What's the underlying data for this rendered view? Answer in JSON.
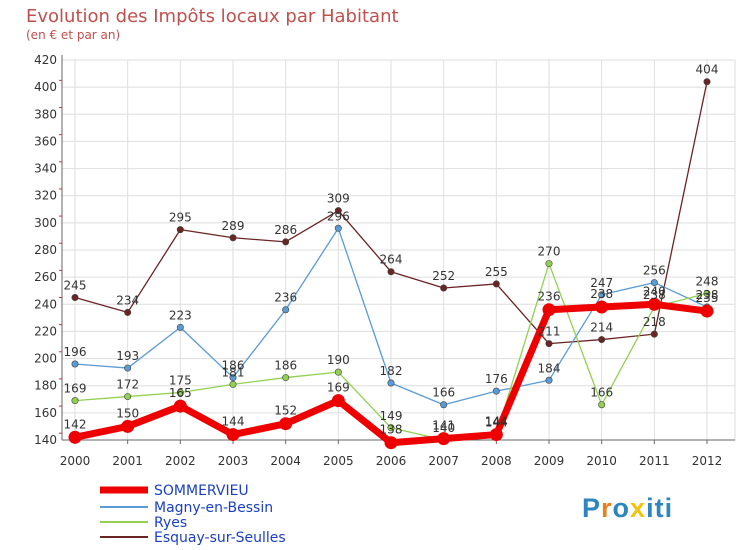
{
  "chart_data": {
    "type": "line",
    "title": "Evolution des Impôts locaux par Habitant",
    "subtitle": "(en € et par an)",
    "xlabel": "",
    "ylabel": "",
    "ylim": [
      140,
      420
    ],
    "yticks": [
      140,
      160,
      180,
      200,
      220,
      240,
      260,
      280,
      300,
      320,
      340,
      360,
      380,
      400,
      420
    ],
    "categories": [
      "2000",
      "2001",
      "2002",
      "2003",
      "2004",
      "2005",
      "2006",
      "2007",
      "2008",
      "2009",
      "2010",
      "2011",
      "2012"
    ],
    "series": [
      {
        "name": "SOMMERVIEU",
        "color": "#ee0000",
        "values": [
          142,
          150,
          165,
          144,
          152,
          169,
          138,
          141,
          144,
          236,
          238,
          240,
          235
        ]
      },
      {
        "name": "Magny-en-Bessin",
        "color": "#5a9bd5",
        "values": [
          196,
          193,
          223,
          186,
          236,
          296,
          182,
          166,
          176,
          184,
          247,
          256,
          238
        ]
      },
      {
        "name": "Ryes",
        "color": "#92d050",
        "values": [
          169,
          172,
          175,
          181,
          186,
          190,
          149,
          140,
          144,
          270,
          166,
          238,
          248
        ]
      },
      {
        "name": "Esquay-sur-Seulles",
        "color": "#6b2424",
        "values": [
          245,
          234,
          295,
          289,
          286,
          309,
          264,
          252,
          255,
          211,
          214,
          218,
          404
        ]
      }
    ]
  },
  "brand": {
    "logo_text": "Proxiti"
  }
}
